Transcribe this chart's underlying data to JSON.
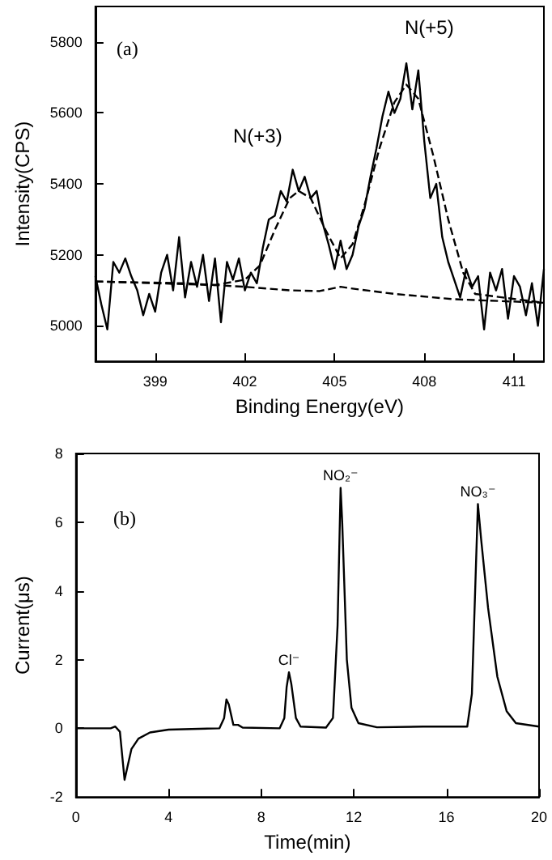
{
  "chart_data": [
    {
      "type": "line",
      "xlabel": "Binding Energy(eV)",
      "ylabel": "Intensity(CPS)",
      "xlim": [
        397,
        412
      ],
      "ylim": [
        4900,
        5900
      ],
      "xticks": [
        399,
        402,
        405,
        408,
        411
      ],
      "yticks": [
        5000,
        5200,
        5400,
        5600,
        5800
      ],
      "grid": false,
      "marker": "none",
      "annotations": [
        "(a)",
        "N(+3)",
        "N(+5)"
      ],
      "series": [
        {
          "color": "#000000",
          "line_style": "solid",
          "x": [
            397.0,
            397.2,
            397.4,
            397.6,
            397.8,
            398.0,
            398.2,
            398.4,
            398.6,
            398.8,
            399.0,
            399.2,
            399.4,
            399.6,
            399.8,
            400.0,
            400.2,
            400.4,
            400.6,
            400.8,
            401.0,
            401.2,
            401.4,
            401.6,
            401.8,
            402.0,
            402.2,
            402.4,
            402.6,
            402.8,
            403.0,
            403.2,
            403.4,
            403.6,
            403.8,
            404.0,
            404.2,
            404.4,
            404.6,
            404.8,
            405.0,
            405.2,
            405.4,
            405.6,
            405.8,
            406.0,
            406.2,
            406.4,
            406.6,
            406.8,
            407.0,
            407.2,
            407.4,
            407.6,
            407.8,
            408.0,
            408.2,
            408.4,
            408.6,
            408.8,
            409.0,
            409.2,
            409.4,
            409.6,
            409.8,
            410.0,
            410.2,
            410.4,
            410.6,
            410.8,
            411.0,
            411.2,
            411.4,
            411.6,
            411.8,
            412.0
          ],
          "values": [
            5140,
            5060,
            4990,
            5180,
            5150,
            5190,
            5140,
            5100,
            5030,
            5090,
            5040,
            5150,
            5200,
            5100,
            5250,
            5080,
            5180,
            5110,
            5200,
            5070,
            5190,
            5010,
            5180,
            5130,
            5190,
            5100,
            5150,
            5120,
            5220,
            5300,
            5310,
            5380,
            5350,
            5440,
            5380,
            5420,
            5360,
            5380,
            5290,
            5230,
            5160,
            5240,
            5160,
            5200,
            5280,
            5330,
            5420,
            5500,
            5590,
            5660,
            5600,
            5640,
            5740,
            5610,
            5720,
            5520,
            5360,
            5400,
            5250,
            5180,
            5130,
            5080,
            5160,
            5110,
            5140,
            4990,
            5150,
            5100,
            5160,
            5020,
            5140,
            5110,
            5030,
            5120,
            5000,
            5160
          ]
        },
        {
          "color": "#000000",
          "line_style": "dashed",
          "x": [
            397,
            401,
            402,
            402.5,
            403,
            403.5,
            403.8,
            404.2,
            404.7,
            405.2,
            405.6,
            406,
            406.5,
            407,
            407.4,
            407.8,
            408.3,
            408.8,
            409.3,
            409.7,
            412
          ],
          "values": [
            5125,
            5115,
            5130,
            5170,
            5270,
            5360,
            5380,
            5360,
            5270,
            5190,
            5230,
            5340,
            5500,
            5630,
            5680,
            5640,
            5480,
            5300,
            5150,
            5090,
            5065
          ]
        },
        {
          "color": "#000000",
          "line_style": "dashed",
          "x": [
            397,
            400,
            402,
            403.5,
            404.5,
            405.2,
            405.6,
            407,
            409,
            412
          ],
          "values": [
            5125,
            5120,
            5110,
            5100,
            5098,
            5110,
            5105,
            5090,
            5075,
            5065
          ]
        }
      ]
    },
    {
      "type": "line",
      "xlabel": "Time(min)",
      "ylabel": "Current(μs)",
      "xlim": [
        0,
        20
      ],
      "ylim": [
        -2,
        8
      ],
      "xticks": [
        0,
        4,
        8,
        12,
        16,
        20
      ],
      "yticks": [
        -2,
        0,
        2,
        4,
        6,
        8
      ],
      "grid": false,
      "marker": "none",
      "annotations": [
        "(b)",
        {
          "text": "Cl⁻",
          "x": 9.2,
          "y": 1.63
        },
        {
          "text": "NO₂⁻",
          "x": 11.43,
          "y": 7.0
        },
        {
          "text": "NO₃⁻",
          "x": 17.36,
          "y": 6.53
        }
      ],
      "series": [
        {
          "color": "#000000",
          "line_style": "solid",
          "x": [
            0,
            1.5,
            1.7,
            1.9,
            2.0,
            2.1,
            2.2,
            2.4,
            2.7,
            3.2,
            4,
            5,
            6.2,
            6.4,
            6.5,
            6.6,
            6.8,
            7.0,
            7.2,
            8.8,
            9.0,
            9.1,
            9.2,
            9.3,
            9.5,
            9.7,
            10.8,
            11.1,
            11.3,
            11.43,
            11.5,
            11.7,
            11.9,
            12.2,
            13,
            15,
            16.9,
            17.1,
            17.36,
            17.5,
            17.8,
            18.2,
            18.6,
            19,
            20
          ],
          "values": [
            0,
            0,
            0.05,
            -0.1,
            -0.8,
            -1.5,
            -1.2,
            -0.6,
            -0.3,
            -0.12,
            -0.04,
            -0.02,
            0,
            0.3,
            0.84,
            0.7,
            0.1,
            0.1,
            0.02,
            0,
            0.3,
            1.2,
            1.63,
            1.3,
            0.3,
            0.05,
            0.02,
            0.3,
            3,
            7.0,
            6,
            2,
            0.6,
            0.15,
            0.03,
            0.05,
            0.05,
            1,
            6.53,
            5.5,
            3.5,
            1.5,
            0.5,
            0.15,
            0.05
          ]
        }
      ]
    }
  ]
}
